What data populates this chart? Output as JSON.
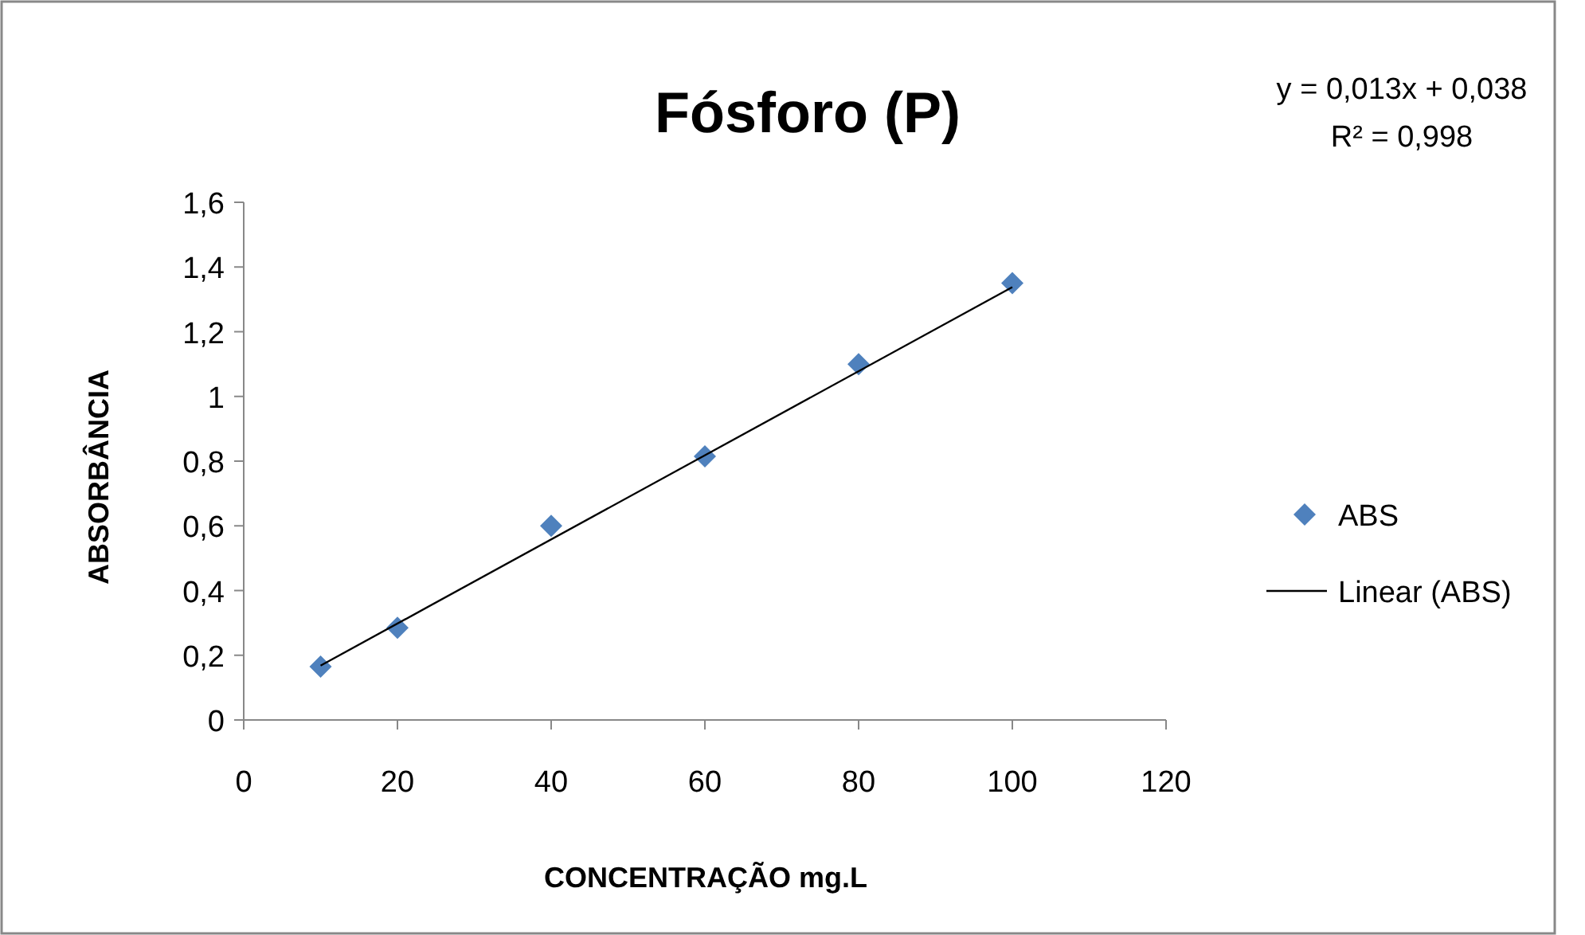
{
  "chart_data": {
    "type": "scatter",
    "title": "Fósforo (P)",
    "xlabel": "CONCENTRAÇÃO mg.L",
    "ylabel": "ABSORBÂNCIA",
    "annotations": [
      "y = 0,013x + 0,038",
      "R² = 0,998"
    ],
    "series": [
      {
        "name": "ABS",
        "color": "#4f81bd",
        "marker": "diamond",
        "x": [
          10,
          20,
          40,
          60,
          80,
          100
        ],
        "values": [
          0.165,
          0.285,
          0.6,
          0.815,
          1.1,
          1.35
        ]
      },
      {
        "name": "Linear (ABS)",
        "type": "line",
        "color": "#000000",
        "marker": "none",
        "x": [
          10,
          100
        ],
        "values": [
          0.168,
          1.338
        ]
      }
    ],
    "xlim": [
      0,
      120
    ],
    "xticks": [
      0,
      20,
      40,
      60,
      80,
      100,
      120
    ],
    "ylim": [
      0,
      1.6
    ],
    "yticks": [
      0,
      {
        "value": 0.2,
        "label": "0,2"
      },
      {
        "value": 0.4,
        "label": "0,4"
      },
      {
        "value": 0.6,
        "label": "0,6"
      },
      {
        "value": 0.8,
        "label": "0,8"
      },
      1,
      {
        "value": 1.2,
        "label": "1,2"
      },
      {
        "value": 1.4,
        "label": "1,4"
      },
      {
        "value": 1.6,
        "label": "1,6"
      }
    ],
    "grid": false,
    "legend": "right"
  }
}
